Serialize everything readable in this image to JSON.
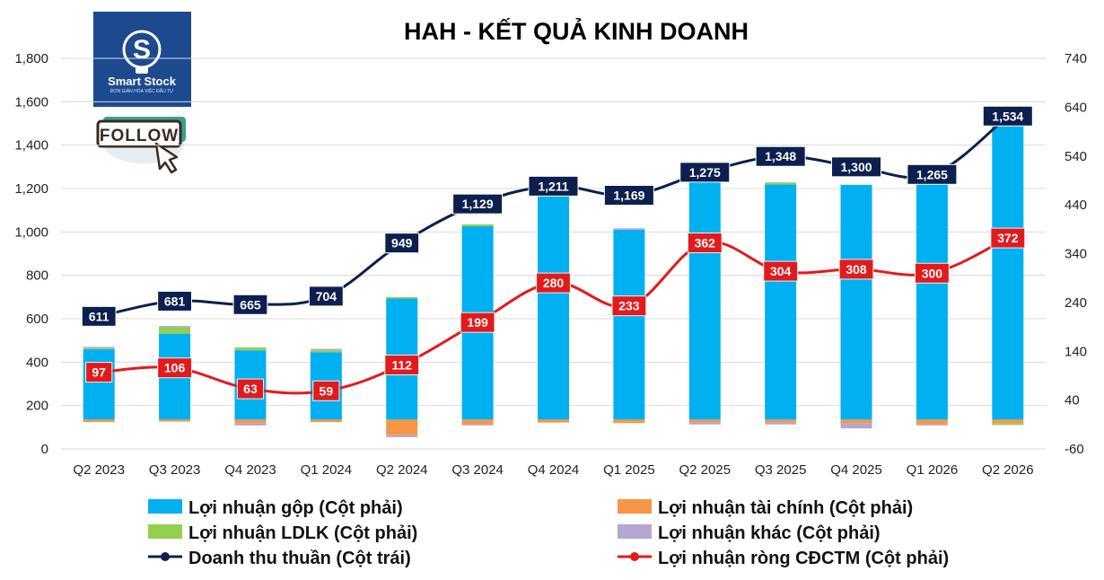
{
  "brand": {
    "name": "Smart Stock",
    "tagline": "ĐƠN GIẢN HÓA VIỆC ĐẦU TƯ",
    "follow_label": "FOLLOW",
    "logo_bg": "#1d4a8f"
  },
  "chart_data": {
    "type": "bar",
    "title": "HAH - KẾT QUẢ KINH DOANH",
    "categories": [
      "Q2 2023",
      "Q3 2023",
      "Q4 2023",
      "Q1 2024",
      "Q2 2024",
      "Q3 2024",
      "Q4 2024",
      "Q1 2025",
      "Q2 2025",
      "Q3 2025",
      "Q4 2025",
      "Q1 2026",
      "Q2 2026"
    ],
    "left_axis": {
      "min": 0,
      "max": 1800,
      "step": 200,
      "ticks": [
        "0",
        "200",
        "400",
        "600",
        "800",
        "1,000",
        "1,200",
        "1,400",
        "1,600",
        "1,800"
      ]
    },
    "right_axis": {
      "min": -60,
      "max": 740,
      "step": 100,
      "ticks": [
        "-60",
        "40",
        "140",
        "240",
        "340",
        "440",
        "540",
        "640",
        "740"
      ]
    },
    "grid": true,
    "legend_position": "bottom",
    "stacked_series": [
      {
        "name": "Lợi nhuận gộp (Cột phải)",
        "color": "#00b0f0",
        "axis": "right",
        "values": [
          144,
          176,
          142,
          138,
          248,
          396,
          460,
          389,
          500,
          482,
          481,
          482,
          602
        ]
      },
      {
        "name": "Lợi nhuận tài chính (Cột phải)",
        "color": "#f79646",
        "axis": "right",
        "values": [
          -5,
          -4,
          -8,
          -5,
          -32,
          -10,
          -6,
          -7,
          -6,
          -6,
          -8,
          -10,
          -8
        ]
      },
      {
        "name": "Lợi nhuận LDLK (Cột phải)",
        "color": "#92d050",
        "axis": "right",
        "values": [
          2,
          13,
          6,
          4,
          3,
          4,
          0,
          0,
          4,
          4,
          0,
          0,
          -3
        ]
      },
      {
        "name": "Lợi nhuận khác (Cột phải)",
        "color": "#b4a7d6",
        "axis": "right",
        "values": [
          3,
          3,
          -4,
          3,
          -4,
          -2,
          4,
          3,
          -4,
          -4,
          -10,
          -2,
          3
        ]
      }
    ],
    "line_series": [
      {
        "name": "Doanh thu thuần (Cột trái)",
        "color": "#0d1f4f",
        "axis": "left",
        "values": [
          611,
          681,
          665,
          704,
          949,
          1129,
          1211,
          1169,
          1275,
          1348,
          1300,
          1265,
          1534
        ],
        "labels": [
          "611",
          "681",
          "665",
          "704",
          "949",
          "1,129",
          "1,211",
          "1,169",
          "1,275",
          "1,348",
          "1,300",
          "1,265",
          "1,534"
        ]
      },
      {
        "name": "Lợi nhuận ròng CĐCTM (Cột phải)",
        "color": "#e31a1c",
        "axis": "right",
        "values": [
          97,
          106,
          63,
          59,
          112,
          199,
          280,
          233,
          362,
          304,
          308,
          300,
          372
        ],
        "labels": [
          "97",
          "106",
          "63",
          "59",
          "112",
          "199",
          "280",
          "233",
          "362",
          "304",
          "308",
          "300",
          "372"
        ]
      }
    ]
  }
}
